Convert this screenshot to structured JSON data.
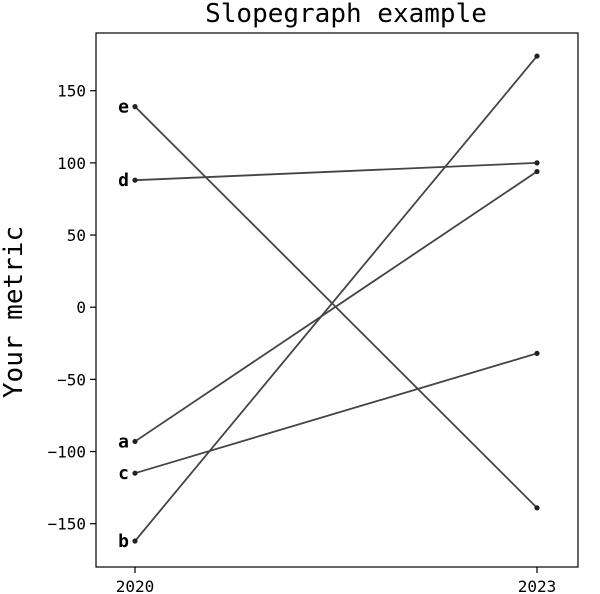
{
  "chart_data": {
    "type": "line",
    "title": "Slopegraph example",
    "xlabel": "",
    "ylabel": "Your metric",
    "x": [
      "2020",
      "2023"
    ],
    "ylim": [
      -180,
      190
    ],
    "yticks": [
      -150,
      -100,
      -50,
      0,
      50,
      100,
      150
    ],
    "grid": false,
    "line_color": "#444444",
    "series": [
      {
        "name": "a",
        "values": [
          -93,
          94
        ]
      },
      {
        "name": "b",
        "values": [
          -162,
          174
        ]
      },
      {
        "name": "c",
        "values": [
          -115,
          -32
        ]
      },
      {
        "name": "d",
        "values": [
          88,
          100
        ]
      },
      {
        "name": "e",
        "values": [
          139,
          -139
        ]
      }
    ]
  }
}
